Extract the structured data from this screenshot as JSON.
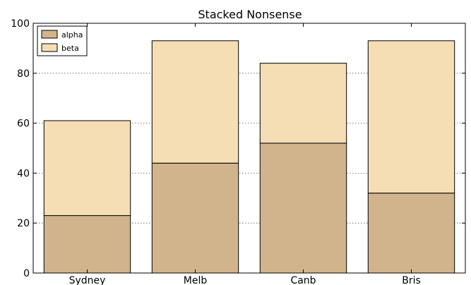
{
  "chart_data": {
    "type": "bar",
    "stacked": true,
    "title": "Stacked Nonsense",
    "xlabel": "",
    "ylabel": "",
    "categories": [
      "Sydney",
      "Melb",
      "Canb",
      "Bris"
    ],
    "series": [
      {
        "name": "alpha",
        "values": [
          23,
          44,
          52,
          32
        ],
        "color": "#d2b48c"
      },
      {
        "name": "beta",
        "values": [
          38,
          49,
          32,
          61
        ],
        "color": "#f5deb3"
      }
    ],
    "ylim": [
      0,
      100
    ],
    "yticks": [
      "0",
      "20",
      "40",
      "60",
      "80",
      "100"
    ],
    "grid": "horizontal-dotted",
    "legend_position": "top-left"
  }
}
